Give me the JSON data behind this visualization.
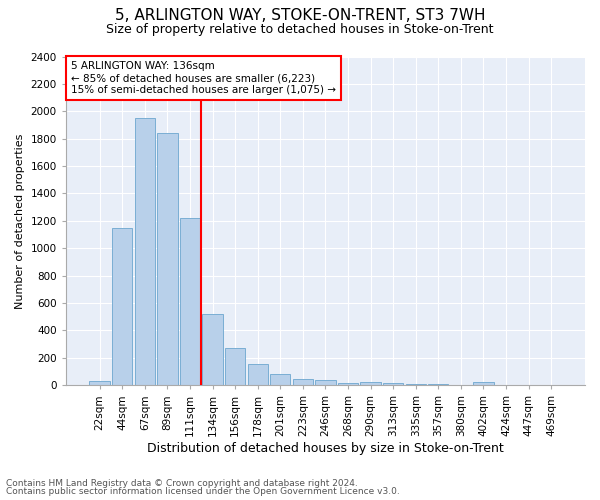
{
  "title1": "5, ARLINGTON WAY, STOKE-ON-TRENT, ST3 7WH",
  "title2": "Size of property relative to detached houses in Stoke-on-Trent",
  "xlabel": "Distribution of detached houses by size in Stoke-on-Trent",
  "ylabel": "Number of detached properties",
  "categories": [
    "22sqm",
    "44sqm",
    "67sqm",
    "89sqm",
    "111sqm",
    "134sqm",
    "156sqm",
    "178sqm",
    "201sqm",
    "223sqm",
    "246sqm",
    "268sqm",
    "290sqm",
    "313sqm",
    "335sqm",
    "357sqm",
    "380sqm",
    "402sqm",
    "424sqm",
    "447sqm",
    "469sqm"
  ],
  "values": [
    30,
    1150,
    1950,
    1840,
    1220,
    520,
    270,
    155,
    85,
    45,
    40,
    20,
    22,
    15,
    10,
    8,
    5,
    22,
    5,
    5,
    3
  ],
  "bar_color": "#b8d0ea",
  "bar_edge_color": "#7aaed4",
  "vline_color": "red",
  "annotation_text": "5 ARLINGTON WAY: 136sqm\n← 85% of detached houses are smaller (6,223)\n15% of semi-detached houses are larger (1,075) →",
  "annotation_box_color": "white",
  "annotation_box_edge": "red",
  "ylim": [
    0,
    2400
  ],
  "yticks": [
    0,
    200,
    400,
    600,
    800,
    1000,
    1200,
    1400,
    1600,
    1800,
    2000,
    2200,
    2400
  ],
  "footer1": "Contains HM Land Registry data © Crown copyright and database right 2024.",
  "footer2": "Contains public sector information licensed under the Open Government Licence v3.0.",
  "bg_color": "#ffffff",
  "plot_bg_color": "#e8eef8",
  "grid_color": "#ffffff",
  "title1_fontsize": 11,
  "title2_fontsize": 9,
  "ylabel_fontsize": 8,
  "xlabel_fontsize": 9,
  "tick_fontsize": 7.5,
  "footer_fontsize": 6.5,
  "vline_x_index": 5
}
